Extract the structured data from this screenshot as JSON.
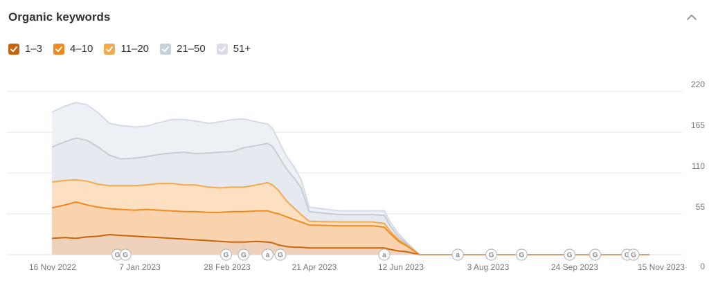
{
  "header": {
    "title": "Organic keywords",
    "collapse_icon": "chevron-up-icon"
  },
  "legend": [
    {
      "label": "1–3",
      "color": "#c8650a",
      "checked": true
    },
    {
      "label": "4–10",
      "color": "#f08a1e",
      "checked": true
    },
    {
      "label": "11–20",
      "color": "#f5a94d",
      "checked": true
    },
    {
      "label": "21–50",
      "color": "#c9d0da",
      "checked": true
    },
    {
      "label": "51+",
      "color": "#d9dee6",
      "checked": true
    }
  ],
  "chart_data": {
    "type": "area",
    "stacked": true,
    "title": "Organic keywords",
    "x": [
      "2022-11-16",
      "2022-11-24",
      "2022-12-01",
      "2022-12-08",
      "2022-12-15",
      "2022-12-22",
      "2022-12-29",
      "2023-01-07",
      "2023-01-14",
      "2023-01-22",
      "2023-01-30",
      "2023-02-07",
      "2023-02-14",
      "2023-02-22",
      "2023-03-01",
      "2023-03-09",
      "2023-03-16",
      "2023-03-24",
      "2023-03-31",
      "2023-04-03",
      "2023-04-07",
      "2023-04-12",
      "2023-04-17",
      "2023-04-21",
      "2023-04-26",
      "2023-05-15",
      "2023-06-05",
      "2023-06-12",
      "2023-06-16",
      "2023-06-21",
      "2023-06-26",
      "2023-07-04",
      "2023-08-03",
      "2023-09-24",
      "2023-11-15",
      "2023-11-25"
    ],
    "x_ticks": [
      "16 Nov 2022",
      "7 Jan 2023",
      "28 Feb 2023",
      "21 Apr 2023",
      "12 Jun 2023",
      "3 Aug 2023",
      "24 Sep 2023",
      "15 Nov 2023"
    ],
    "y_ticks": [
      "220",
      "165",
      "110",
      "55",
      "0"
    ],
    "ylim": [
      0,
      220
    ],
    "grid": true,
    "legend_position": "top-left",
    "series": [
      {
        "name": "1–3",
        "color": "#c8650a",
        "values": [
          22,
          23,
          22,
          24,
          25,
          27,
          26,
          25,
          24,
          23,
          22,
          21,
          20,
          19,
          18,
          17,
          17,
          18,
          17,
          16,
          13,
          11,
          10,
          10,
          9,
          9,
          9,
          9,
          7,
          5,
          4,
          0,
          0,
          0,
          0,
          0
        ]
      },
      {
        "name": "4–10",
        "color": "#f08a1e",
        "values": [
          63,
          67,
          71,
          67,
          64,
          62,
          61,
          60,
          61,
          60,
          59,
          58,
          58,
          57,
          57,
          58,
          58,
          59,
          59,
          57,
          55,
          51,
          47,
          44,
          40,
          39,
          39,
          37,
          28,
          18,
          12,
          0,
          0,
          0,
          0,
          0
        ]
      },
      {
        "name": "11–20",
        "color": "#f5a94d",
        "values": [
          98,
          100,
          101,
          99,
          95,
          93,
          93,
          93,
          94,
          96,
          96,
          94,
          94,
          91,
          90,
          91,
          91,
          94,
          97,
          94,
          86,
          72,
          62,
          54,
          45,
          44,
          44,
          42,
          31,
          20,
          13,
          0,
          0,
          0,
          0,
          0
        ]
      },
      {
        "name": "21–50",
        "color": "#c9d0da",
        "values": [
          145,
          152,
          157,
          154,
          145,
          134,
          129,
          130,
          132,
          135,
          137,
          138,
          136,
          137,
          138,
          139,
          144,
          147,
          150,
          146,
          132,
          115,
          102,
          90,
          58,
          54,
          54,
          53,
          38,
          24,
          15,
          0,
          0,
          0,
          0,
          0
        ]
      },
      {
        "name": "51+",
        "color": "#d9dee6",
        "values": [
          192,
          200,
          205,
          202,
          191,
          177,
          174,
          172,
          173,
          178,
          182,
          182,
          180,
          177,
          179,
          182,
          183,
          179,
          176,
          170,
          153,
          132,
          117,
          101,
          64,
          59,
          59,
          59,
          43,
          28,
          17,
          0,
          0,
          0,
          0,
          0
        ]
      }
    ],
    "annotations": [
      {
        "date": "2022-12-27",
        "label": "G"
      },
      {
        "date": "2023-01-01",
        "label": "G"
      },
      {
        "date": "2023-03-05",
        "label": "G"
      },
      {
        "date": "2023-03-16",
        "label": "G"
      },
      {
        "date": "2023-03-31",
        "label": "a"
      },
      {
        "date": "2023-04-08",
        "label": "G"
      },
      {
        "date": "2023-06-12",
        "label": "a"
      },
      {
        "date": "2023-07-28",
        "label": "a"
      },
      {
        "date": "2023-08-18",
        "label": "G"
      },
      {
        "date": "2023-09-06",
        "label": "G"
      },
      {
        "date": "2023-10-06",
        "label": "G"
      },
      {
        "date": "2023-10-22",
        "label": "G"
      },
      {
        "date": "2023-11-11",
        "label": "G"
      },
      {
        "date": "2023-11-15",
        "label": "G"
      }
    ]
  }
}
